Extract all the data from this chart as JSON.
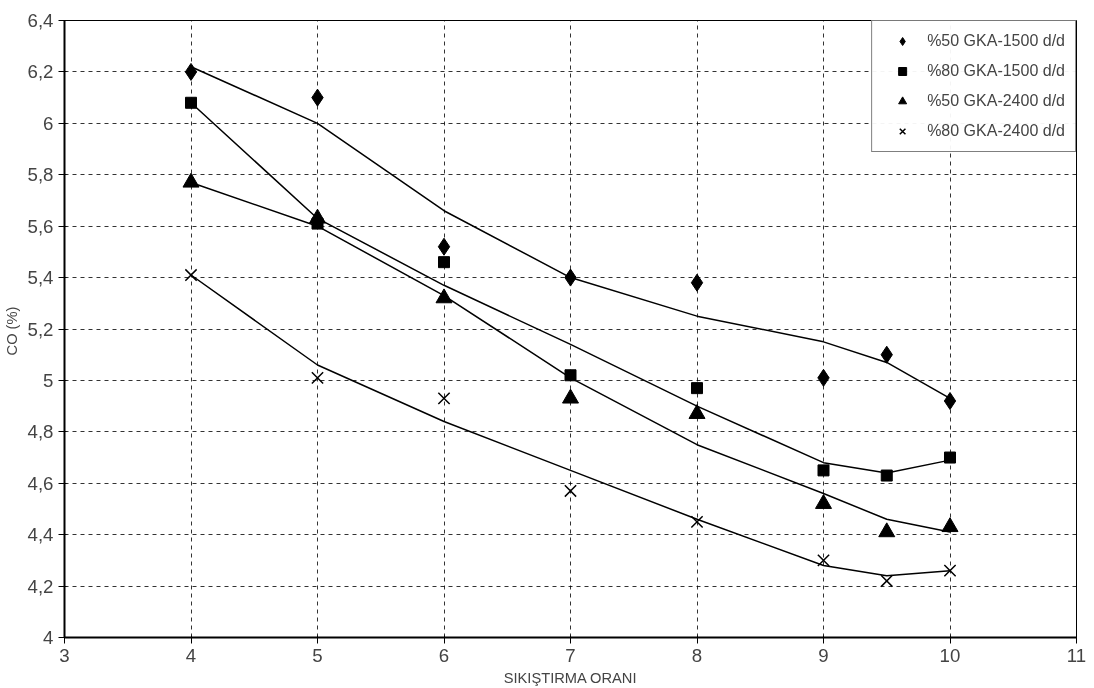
{
  "chart_data": {
    "type": "scatter",
    "xlabel": "SIKIŞTIRMA ORANI",
    "ylabel": "CO  (%)",
    "xlim": [
      3,
      11
    ],
    "ylim": [
      4,
      6.4
    ],
    "xticks": [
      3,
      4,
      5,
      6,
      7,
      8,
      9,
      10,
      11
    ],
    "yticks": [
      4,
      {
        "value": 4.2,
        "label": "4,2"
      },
      {
        "value": 4.4,
        "label": "4,4"
      },
      {
        "value": 4.6,
        "label": "4,6"
      },
      {
        "value": 4.8,
        "label": "4,8"
      },
      5,
      {
        "value": 5.2,
        "label": "5,2"
      },
      {
        "value": 5.4,
        "label": "5,4"
      },
      {
        "value": 5.6,
        "label": "5,6"
      },
      {
        "value": 5.8,
        "label": "5,8"
      },
      6,
      {
        "value": 6.2,
        "label": "6,2"
      },
      {
        "value": 6.4,
        "label": "6,4"
      }
    ],
    "grid": true,
    "legend": "top right",
    "x": [
      4,
      5,
      6,
      7,
      8,
      9,
      9.5,
      10
    ],
    "series": [
      {
        "name": "%50 GKA-1500 d/d",
        "color": "#000000",
        "marker": "diamond",
        "values": [
          6.2,
          6.1,
          5.52,
          5.4,
          5.38,
          5.01,
          5.1,
          4.92
        ]
      },
      {
        "name": "%80 GKA-1500 d/d",
        "color": "#000000",
        "marker": "square",
        "values": [
          6.08,
          5.61,
          5.46,
          5.02,
          4.97,
          4.65,
          4.63,
          4.7
        ]
      },
      {
        "name": "%50 GKA-2400 d/d",
        "color": "#000000",
        "marker": "triangle",
        "values": [
          5.77,
          5.63,
          5.32,
          4.93,
          4.87,
          4.52,
          4.41,
          4.43
        ]
      },
      {
        "name": "%80 GKA-2400 d/d",
        "color": "#000000",
        "marker": "cross",
        "values": [
          5.41,
          5.01,
          4.93,
          4.57,
          4.45,
          4.3,
          4.22,
          4.26
        ]
      },
      {
        "type": "line",
        "color": "#000000",
        "line_style": "solid",
        "values": [
          6.22,
          6.0,
          5.66,
          5.4,
          5.25,
          5.15,
          5.07,
          4.93
        ]
      },
      {
        "type": "line",
        "color": "#000000",
        "line_style": "solid",
        "values": [
          6.08,
          5.63,
          5.37,
          5.14,
          4.9,
          4.68,
          4.64,
          4.69
        ]
      },
      {
        "type": "line",
        "color": "#000000",
        "line_style": "solid",
        "values": [
          5.77,
          5.6,
          5.33,
          5.01,
          4.75,
          4.56,
          4.46,
          4.41
        ]
      },
      {
        "type": "line",
        "color": "#000000",
        "line_style": "solid",
        "values": [
          5.41,
          5.06,
          4.84,
          4.65,
          4.46,
          4.28,
          4.24,
          4.26
        ]
      }
    ]
  }
}
